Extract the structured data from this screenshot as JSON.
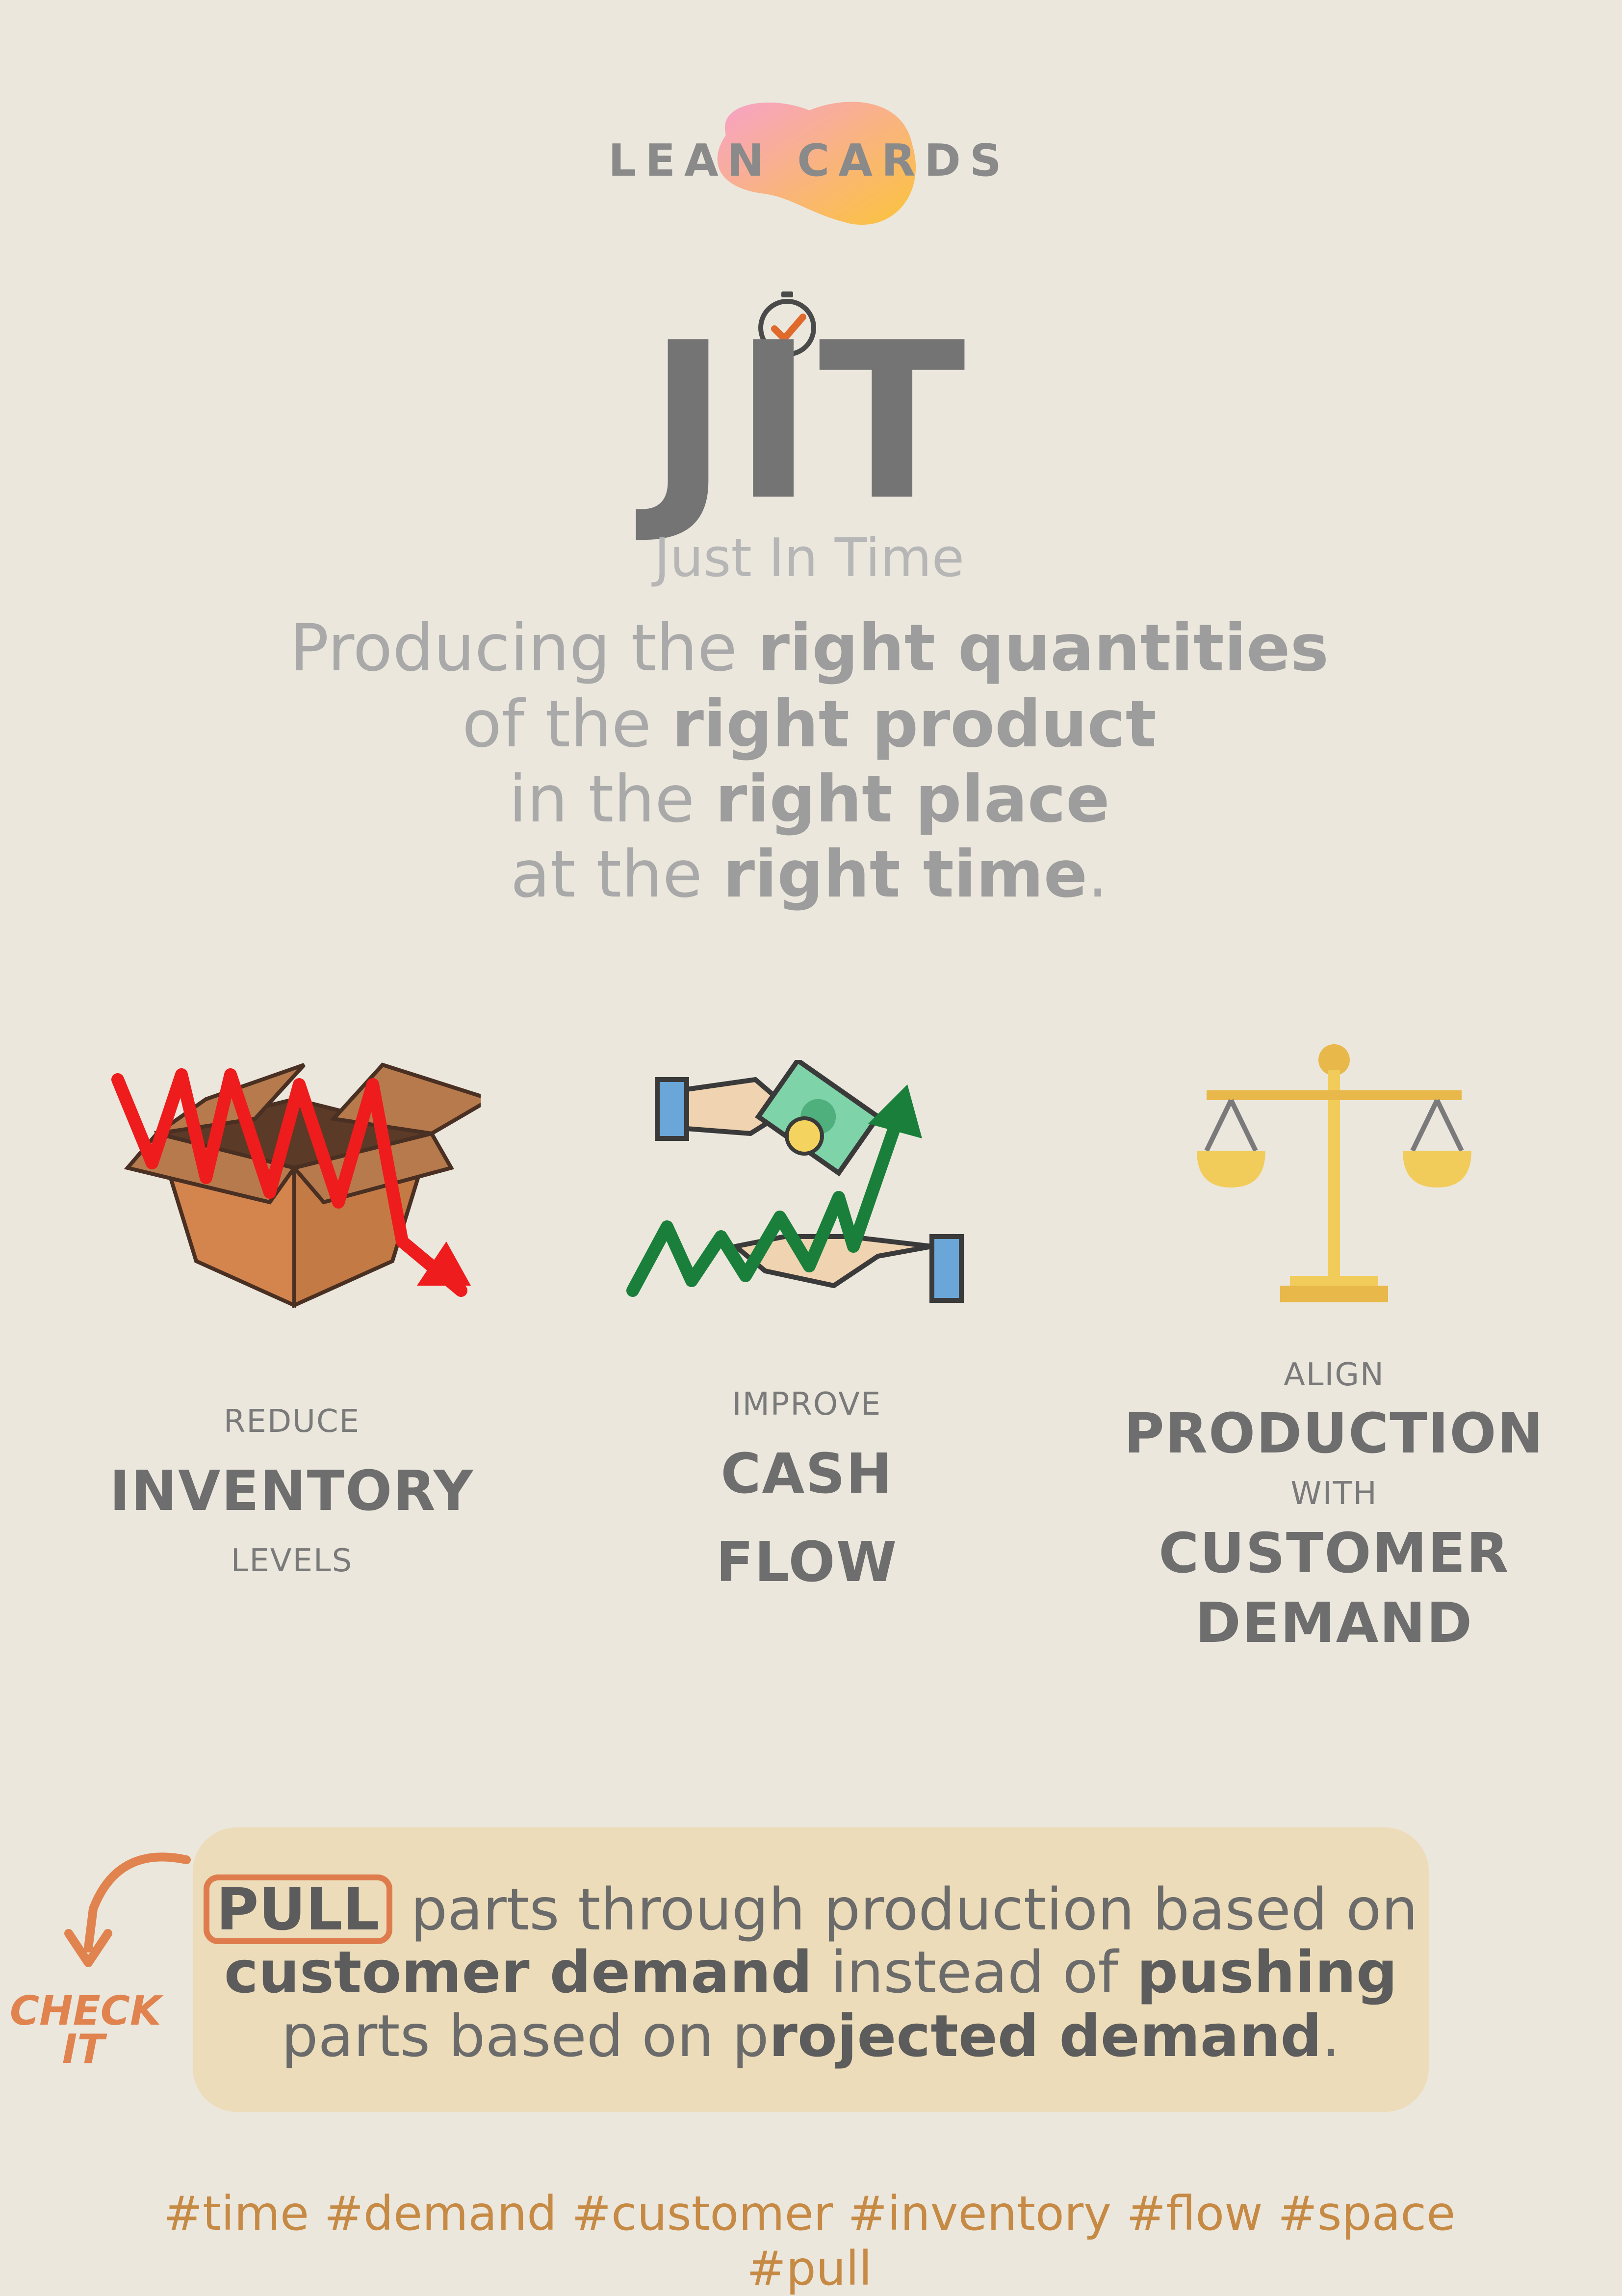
{
  "brand": {
    "text": "LEAN CARDS"
  },
  "title": {
    "acronym": "JIT",
    "subtitle": "Just In Time"
  },
  "definition": {
    "line1": {
      "plain": "Producing the ",
      "bold": "right quantities",
      "tail": ""
    },
    "line2": {
      "plain": "of the ",
      "bold": "right product",
      "tail": ""
    },
    "line3": {
      "plain": "in the ",
      "bold": "right place",
      "tail": ""
    },
    "line4": {
      "plain": "at the ",
      "bold": "right time",
      "tail": "."
    }
  },
  "benefits": [
    {
      "icon": "box-decline-icon",
      "top": "REDUCE",
      "big": "INVENTORY",
      "bottom": "LEVELS"
    },
    {
      "icon": "cash-flow-icon",
      "top": "IMPROVE",
      "big1": "CASH",
      "big2": "FLOW"
    },
    {
      "icon": "scale-icon",
      "top": "ALIGN",
      "big1": "PRODUCTION",
      "mid": "WITH",
      "big2": "CUSTOMER",
      "big3": "DEMAND"
    }
  ],
  "pull": {
    "keyword": "PULL",
    "line1_rest": " parts through production based on",
    "line2_bold1": "customer demand",
    "line2_plain": " instead of ",
    "line2_bold2": "pushing",
    "line3_plain": "parts based on p",
    "line3_bold": "rojected demand",
    "line3_tail": "."
  },
  "check_it": {
    "line1": "CHECK",
    "line2": "IT"
  },
  "hashtags": "#time #demand #customer #inventory #flow #space #pull",
  "colors": {
    "background": "#ebe7dd",
    "accent_orange": "#de7c4d",
    "pull_box": "#ecdcb9",
    "hashtag": "#c68a45"
  }
}
